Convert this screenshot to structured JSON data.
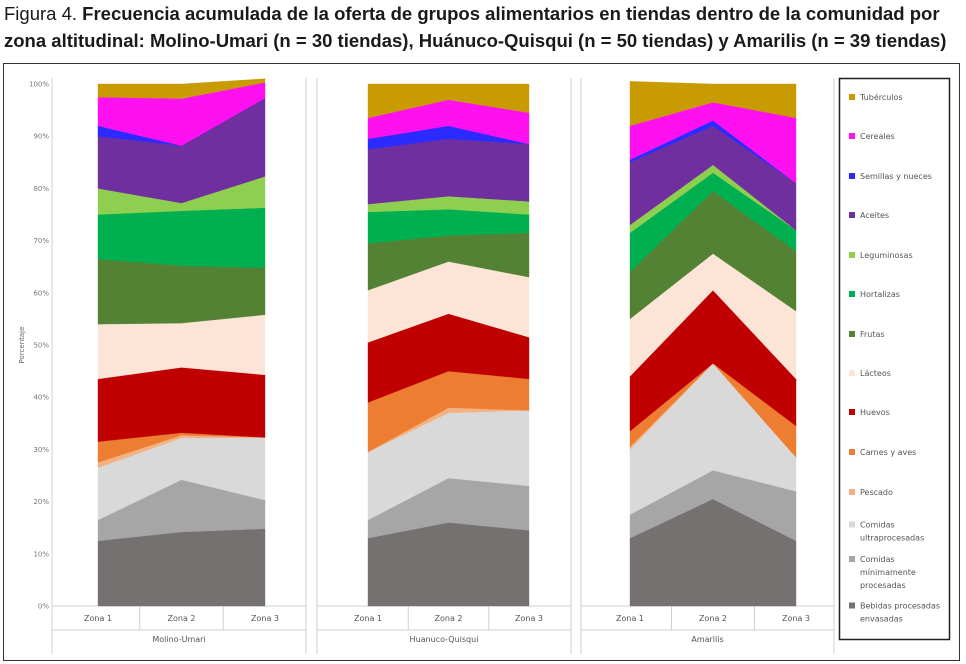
{
  "caption": {
    "lead": "Figura 4. ",
    "bold": "Frecuencia acumulada de la oferta de grupos alimentarios en tiendas dentro de la comunidad por zona altitudinal: Molino-Umari (n = 30 tiendas), Huánuco-Quisqui (n = 50 tiendas) y Amarilis (n = 39 tiendas)"
  },
  "chart_data": {
    "type": "area",
    "stacked": true,
    "ylabel": "Porcentaje",
    "ylim": [
      0,
      100
    ],
    "yticks": [
      "0%",
      "10%",
      "20%",
      "30%",
      "40%",
      "50%",
      "60%",
      "70%",
      "80%",
      "90%",
      "100%"
    ],
    "grid": false,
    "legend_position": "right",
    "categories": [
      "Zona 1",
      "Zona 2",
      "Zona 3"
    ],
    "panels": [
      {
        "name": "Molino-Umari",
        "series": [
          {
            "name": "Bebidas procesadas envasadas",
            "values": [
              12.5,
              14.2,
              14.8
            ]
          },
          {
            "name": "Comidas mínimamente procesadas",
            "values": [
              4.0,
              10.0,
              5.5
            ]
          },
          {
            "name": "Comidas ultraprocesadas",
            "values": [
              10.0,
              8.0,
              12.0
            ]
          },
          {
            "name": "Pescado",
            "values": [
              1.0,
              0.5,
              0.0
            ]
          },
          {
            "name": "Carnes y aves",
            "values": [
              4.0,
              0.5,
              0.0
            ]
          },
          {
            "name": "Huevos",
            "values": [
              12.0,
              12.5,
              12.0
            ]
          },
          {
            "name": "Lácteos",
            "values": [
              10.5,
              8.5,
              11.5
            ]
          },
          {
            "name": "Frutas",
            "values": [
              12.5,
              11.0,
              9.0
            ]
          },
          {
            "name": "Hortalizas",
            "values": [
              8.5,
              10.5,
              11.5
            ]
          },
          {
            "name": "Leguminosas",
            "values": [
              5.0,
              1.5,
              6.0
            ]
          },
          {
            "name": "Aceites",
            "values": [
              10.0,
              11.0,
              15.0
            ]
          },
          {
            "name": "Semillas y nueces",
            "values": [
              2.0,
              0.0,
              0.0
            ]
          },
          {
            "name": "Cereales",
            "values": [
              5.5,
              9.0,
              3.0
            ]
          },
          {
            "name": "Tubérculos",
            "values": [
              2.5,
              2.8,
              0.7
            ]
          }
        ]
      },
      {
        "name": "Huanuco-Quisqui",
        "series": [
          {
            "name": "Bebidas procesadas envasadas",
            "values": [
              13.0,
              16.0,
              14.5
            ]
          },
          {
            "name": "Comidas mínimamente procesadas",
            "values": [
              3.5,
              8.5,
              8.5
            ]
          },
          {
            "name": "Comidas ultraprocesadas",
            "values": [
              13.0,
              12.5,
              14.5
            ]
          },
          {
            "name": "Pescado",
            "values": [
              0.0,
              1.0,
              0.0
            ]
          },
          {
            "name": "Carnes y aves",
            "values": [
              9.5,
              7.0,
              6.0
            ]
          },
          {
            "name": "Huevos",
            "values": [
              11.5,
              11.0,
              8.0
            ]
          },
          {
            "name": "Lácteos",
            "values": [
              10.0,
              10.0,
              11.5
            ]
          },
          {
            "name": "Frutas",
            "values": [
              9.0,
              5.0,
              8.5
            ]
          },
          {
            "name": "Hortalizas",
            "values": [
              6.0,
              5.0,
              3.5
            ]
          },
          {
            "name": "Leguminosas",
            "values": [
              1.5,
              2.5,
              2.5
            ]
          },
          {
            "name": "Aceites",
            "values": [
              10.5,
              11.0,
              11.0
            ]
          },
          {
            "name": "Semillas y nueces",
            "values": [
              2.0,
              2.5,
              0.0
            ]
          },
          {
            "name": "Cereales",
            "values": [
              4.0,
              5.0,
              6.0
            ]
          },
          {
            "name": "Tubérculos",
            "values": [
              6.5,
              3.0,
              5.5
            ]
          }
        ]
      },
      {
        "name": "Amarilis",
        "series": [
          {
            "name": "Bebidas procesadas envasadas",
            "values": [
              13.0,
              20.5,
              12.5
            ]
          },
          {
            "name": "Comidas mínimamente procesadas",
            "values": [
              4.5,
              5.5,
              9.5
            ]
          },
          {
            "name": "Comidas ultraprocesadas",
            "values": [
              12.5,
              20.5,
              6.5
            ]
          },
          {
            "name": "Pescado",
            "values": [
              0.5,
              0.0,
              0.0
            ]
          },
          {
            "name": "Carnes y aves",
            "values": [
              3.0,
              0.0,
              6.0
            ]
          },
          {
            "name": "Huevos",
            "values": [
              10.5,
              14.0,
              9.0
            ]
          },
          {
            "name": "Lácteos",
            "values": [
              11.0,
              7.0,
              13.0
            ]
          },
          {
            "name": "Frutas",
            "values": [
              9.0,
              12.0,
              11.5
            ]
          },
          {
            "name": "Hortalizas",
            "values": [
              7.5,
              3.5,
              4.0
            ]
          },
          {
            "name": "Leguminosas",
            "values": [
              1.5,
              1.5,
              0.0
            ]
          },
          {
            "name": "Aceites",
            "values": [
              12.0,
              7.5,
              9.0
            ]
          },
          {
            "name": "Semillas y nueces",
            "values": [
              0.5,
              1.0,
              0.0
            ]
          },
          {
            "name": "Cereales",
            "values": [
              6.5,
              3.5,
              12.5
            ]
          },
          {
            "name": "Tubérculos",
            "values": [
              8.5,
              3.5,
              6.5
            ]
          }
        ]
      }
    ],
    "legend": [
      {
        "name": "Tubérculos",
        "color": "#c89b00"
      },
      {
        "name": "Cereales",
        "color": "#ff10f0"
      },
      {
        "name": "Semillas y nueces",
        "color": "#2b2bff"
      },
      {
        "name": "Aceites",
        "color": "#6f2f9e"
      },
      {
        "name": "Leguminosas",
        "color": "#8fcf50"
      },
      {
        "name": "Hortalizas",
        "color": "#00b050"
      },
      {
        "name": "Frutas",
        "color": "#548235"
      },
      {
        "name": "Lácteos",
        "color": "#fce4d6"
      },
      {
        "name": "Huevos",
        "color": "#c00000"
      },
      {
        "name": "Carnes y aves",
        "color": "#ed7d31"
      },
      {
        "name": "Pescado",
        "color": "#f4b183"
      },
      {
        "name": "Comidas ultraprocesadas",
        "color": "#d9d9d9"
      },
      {
        "name": "Comidas mínimamente procesadas",
        "color": "#a6a6a6"
      },
      {
        "name": "Bebidas procesadas envasadas",
        "color": "#767171"
      }
    ]
  }
}
